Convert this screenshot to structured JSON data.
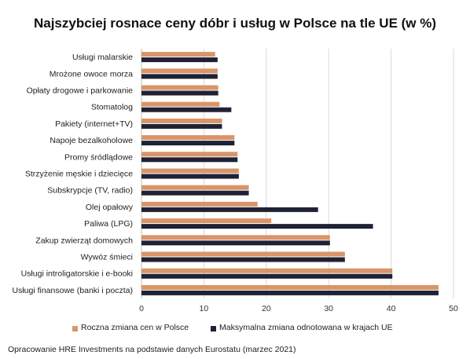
{
  "chart_data": {
    "type": "bar",
    "orientation": "horizontal",
    "title": "Najszybciej rosnace ceny dóbr i usług w Polsce na tle UE (w %)",
    "categories": [
      "Usługi malarskie",
      "Mrożone owoce morza",
      "Opłaty drogowe i parkowanie",
      "Stomatolog",
      "Pakiety (internet+TV)",
      "Napoje bezalkoholowe",
      "Promy śródlądowe",
      "Strzyżenie męskie i dziecięce",
      "Subskrypcje (TV, radio)",
      "Olej opałowy",
      "Paliwa (LPG)",
      "Zakup zwierząt domowych",
      "Wywóz śmieci",
      "Usługi introligatorskie i e-booki",
      "Usługi finansowe (banki i poczta)"
    ],
    "series": [
      {
        "name": "Roczna zmiana cen w Polsce",
        "color": "#d9956a",
        "values": [
          11.8,
          12.2,
          12.3,
          12.5,
          12.9,
          14.9,
          15.4,
          15.6,
          17.2,
          18.6,
          20.8,
          30.2,
          32.6,
          40.2,
          47.6
        ]
      },
      {
        "name": "Maksymalna zmiana odnotowana w krajach UE",
        "color": "#1f2235",
        "values": [
          12.2,
          12.2,
          12.3,
          14.4,
          12.9,
          14.9,
          15.4,
          15.6,
          17.2,
          28.3,
          37.1,
          30.2,
          32.6,
          40.2,
          47.6
        ]
      }
    ],
    "xlim": [
      0,
      50
    ],
    "xticks": [
      0,
      10,
      20,
      30,
      40,
      50
    ],
    "grid": true,
    "legend_position": "bottom"
  },
  "source_note": "Opracowanie HRE Investments na podstawie danych Eurostatu (marzec 2021)"
}
